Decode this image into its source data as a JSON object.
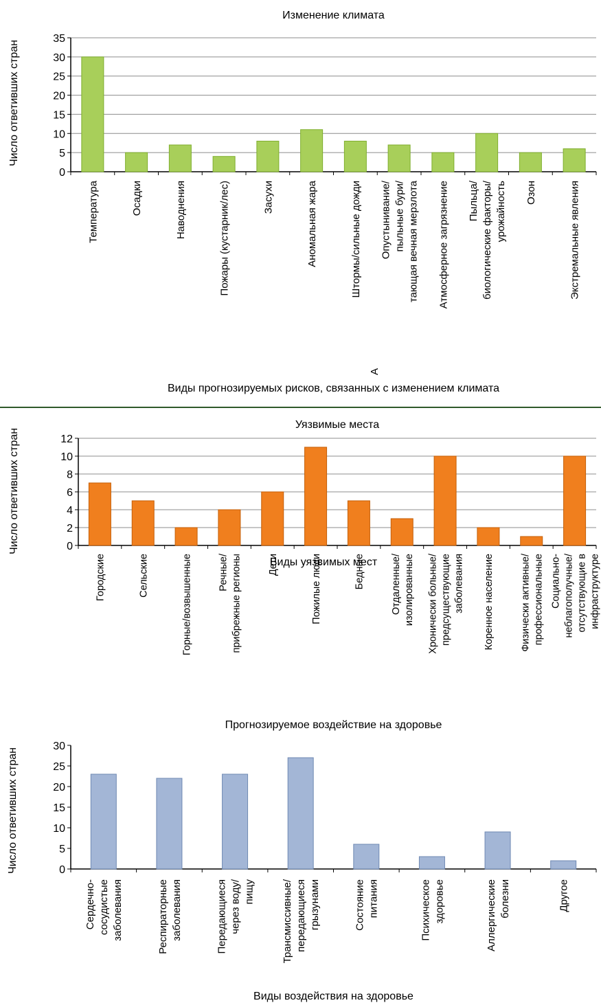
{
  "colors": {
    "climate_bar": "#a8cf5a",
    "climate_bar_stroke": "#7fae2e",
    "places_bar": "#f07f1e",
    "places_bar_stroke": "#c45f08",
    "health_bar": "#a3b6d6",
    "health_bar_stroke": "#6f89b3",
    "grid": "#8c8c8c",
    "separator": "#2f5a2a"
  },
  "chart_data": [
    {
      "type": "bar",
      "title": "Изменение климата",
      "xlabel": "Виды прогнозируемых рисков, связанных с изменением климата",
      "ylabel": "Число ответивших стран",
      "ylim": [
        0,
        35
      ],
      "yticks": [
        0,
        5,
        10,
        15,
        20,
        25,
        30,
        35
      ],
      "grid": true,
      "categories": [
        [
          "Температура"
        ],
        [
          "Осадки"
        ],
        [
          "Наводнения"
        ],
        [
          "Пожары (кустарник/лес)"
        ],
        [
          "Засухи"
        ],
        [
          "Аномальная жара"
        ],
        [
          "Штормы/сильные дожди"
        ],
        [
          "Опустынивание/",
          "пыльные бури/",
          "тающая вечная мерзлота"
        ],
        [
          "Атмосферное загрязнение"
        ],
        [
          "Пыльца/",
          "биологические факторы/",
          "урожайность"
        ],
        [
          "Озон"
        ],
        [
          "Экстремальные явления"
        ]
      ],
      "values": [
        30,
        5,
        7,
        4,
        8,
        11,
        8,
        7,
        5,
        10,
        5,
        6
      ],
      "extra_mark": "А"
    },
    {
      "type": "bar",
      "title": "Уязвимые места",
      "xlabel": "Виды уязвимых мест",
      "ylabel": "Число ответивших стран",
      "ylim": [
        0,
        12
      ],
      "yticks": [
        0,
        2,
        4,
        6,
        8,
        10,
        12
      ],
      "grid": true,
      "categories": [
        [
          "Городские"
        ],
        [
          "Сельские"
        ],
        [
          "Горные/возвышенные"
        ],
        [
          "Речные/",
          "прибрежные регионы"
        ],
        [
          "Дети"
        ],
        [
          "Пожилые люди"
        ],
        [
          "Бедные"
        ],
        [
          "Отдаленные/",
          "изолированные"
        ],
        [
          "Хронически больные/",
          "предсуществующие",
          "заболевания"
        ],
        [
          "Коренное население"
        ],
        [
          "Физически активные/",
          "профессиональные"
        ],
        [
          "Социально-",
          "неблагополучные/",
          "отсутствующие в",
          "инфраструктуре"
        ]
      ],
      "values": [
        7,
        5,
        2,
        4,
        6,
        11,
        5,
        3,
        10,
        2,
        1,
        10
      ]
    },
    {
      "type": "bar",
      "title": "Прогнозируемое воздействие на здоровье",
      "xlabel": "Виды воздействия на здоровье",
      "ylabel": "Число ответивших стран",
      "ylim": [
        0,
        30
      ],
      "yticks": [
        0,
        5,
        10,
        15,
        20,
        25,
        30
      ],
      "grid": false,
      "categories": [
        [
          "Сердечно-",
          "сосудистые",
          "заболевания"
        ],
        [
          "Респираторные",
          "заболевания"
        ],
        [
          "Передающиеся",
          "через воду/",
          "пищу"
        ],
        [
          "Трансмиссивные/",
          "передающиеся",
          "грызунами"
        ],
        [
          "Состояние",
          "питания"
        ],
        [
          "Психическое",
          "здоровье"
        ],
        [
          "Аллергические",
          "болезни"
        ],
        [
          "Другое"
        ]
      ],
      "values": [
        23,
        22,
        23,
        27,
        6,
        3,
        9,
        2
      ]
    }
  ]
}
